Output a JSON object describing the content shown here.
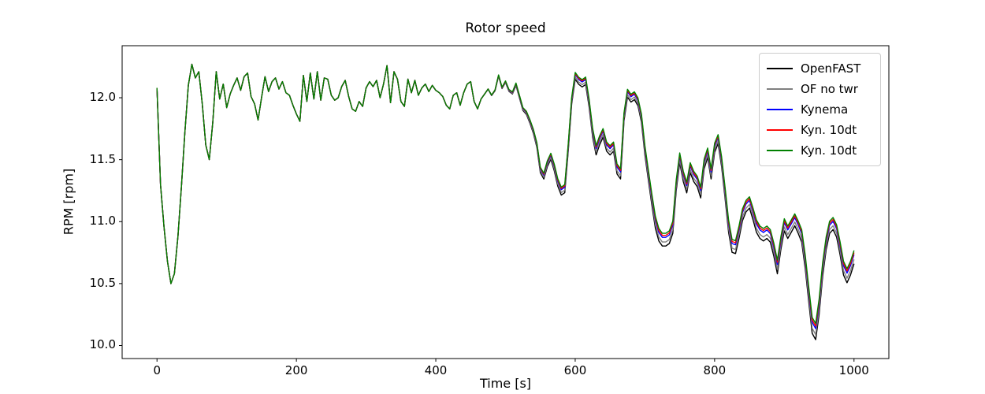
{
  "figure": {
    "title": "Rotor speed",
    "xlabel": "Time [s]",
    "ylabel": "RPM [rpm]"
  },
  "chart_data": {
    "type": "line",
    "title": "Rotor speed",
    "xlabel": "Time [s]",
    "ylabel": "RPM [rpm]",
    "xlim": [
      -50,
      1050
    ],
    "ylim": [
      9.895,
      12.42
    ],
    "xticks": [
      0,
      200,
      400,
      600,
      800,
      1000
    ],
    "xtick_labels": [
      "0",
      "200",
      "400",
      "600",
      "800",
      "1000"
    ],
    "yticks": [
      10.0,
      10.5,
      11.0,
      11.5,
      12.0
    ],
    "ytick_labels": [
      "10.0",
      "10.5",
      "11.0",
      "11.5",
      "12.0"
    ],
    "grid": false,
    "legend_position": "upper right",
    "x_start": 0,
    "x_step": 5,
    "base_rpm": [
      12.08,
      11.3,
      10.96,
      10.68,
      10.5,
      10.58,
      10.88,
      11.28,
      11.72,
      12.1,
      12.27,
      12.16,
      12.21,
      11.95,
      11.62,
      11.5,
      11.8,
      12.21,
      11.99,
      12.11,
      11.92,
      12.03,
      12.1,
      12.16,
      12.06,
      12.17,
      12.2,
      12.01,
      11.95,
      11.82,
      12.0,
      12.17,
      12.05,
      12.13,
      12.16,
      12.07,
      12.13,
      12.04,
      12.02,
      11.94,
      11.87,
      11.81,
      12.18,
      11.97,
      12.2,
      11.99,
      12.21,
      11.98,
      12.16,
      12.15,
      12.02,
      11.98,
      12.0,
      12.09,
      12.14,
      12.01,
      11.91,
      11.89,
      11.97,
      11.93,
      12.08,
      12.13,
      12.09,
      12.14,
      12.0,
      12.11,
      12.26,
      11.96,
      12.21,
      12.15,
      11.97,
      11.93,
      12.15,
      12.04,
      12.14,
      12.02,
      12.08,
      12.11,
      12.05,
      12.1,
      12.06,
      12.04,
      12.01,
      11.94,
      11.91,
      12.02,
      12.04,
      11.94,
      12.04,
      12.11,
      12.13,
      11.97,
      11.91,
      11.99,
      12.03,
      12.07,
      12.02,
      12.06,
      12.18,
      12.08,
      12.13,
      12.06,
      12.04,
      12.11,
      12.01,
      11.91,
      11.88,
      11.81,
      11.73,
      11.62,
      11.42,
      11.37,
      11.47,
      11.53,
      11.44,
      11.32,
      11.25,
      11.27,
      11.6,
      11.98,
      12.18,
      12.14,
      12.12,
      12.14,
      11.96,
      11.72,
      11.58,
      11.66,
      11.72,
      11.61,
      11.58,
      11.61,
      11.43,
      11.39,
      11.85,
      12.04,
      12.0,
      12.02,
      11.97,
      11.84,
      11.58,
      11.38,
      11.18,
      11.0,
      10.9,
      10.86,
      10.86,
      10.88,
      10.96,
      11.3,
      11.52,
      11.37,
      11.28,
      11.44,
      11.37,
      11.33,
      11.24,
      11.47,
      11.56,
      11.39,
      11.6,
      11.67,
      11.49,
      11.24,
      10.97,
      10.81,
      10.8,
      10.92,
      11.06,
      11.13,
      11.16,
      11.07,
      10.97,
      10.92,
      10.9,
      10.92,
      10.89,
      10.78,
      10.64,
      10.83,
      10.98,
      10.92,
      10.97,
      11.02,
      10.96,
      10.89,
      10.68,
      10.42,
      10.17,
      10.12,
      10.32,
      10.62,
      10.83,
      10.96,
      10.99,
      10.93,
      10.79,
      10.63,
      10.57,
      10.63,
      10.72
    ],
    "series": [
      {
        "name": "OpenFAST",
        "color": "#000000",
        "offset": -0.035
      },
      {
        "name": "OF no twr",
        "color": "#808080",
        "offset": -0.015
      },
      {
        "name": "Kynema",
        "color": "#0000ff",
        "offset": 0.008
      },
      {
        "name": "Kyn. 10dt",
        "color": "#ff0000",
        "offset": 0.018
      },
      {
        "name": "Kyn. 10dt",
        "color": "#008000",
        "offset": 0.028
      }
    ],
    "spread": {
      "ramp_start": 470,
      "ramp_end": 620,
      "trough_ref": 11.9,
      "trough_gain": 0.6
    }
  }
}
